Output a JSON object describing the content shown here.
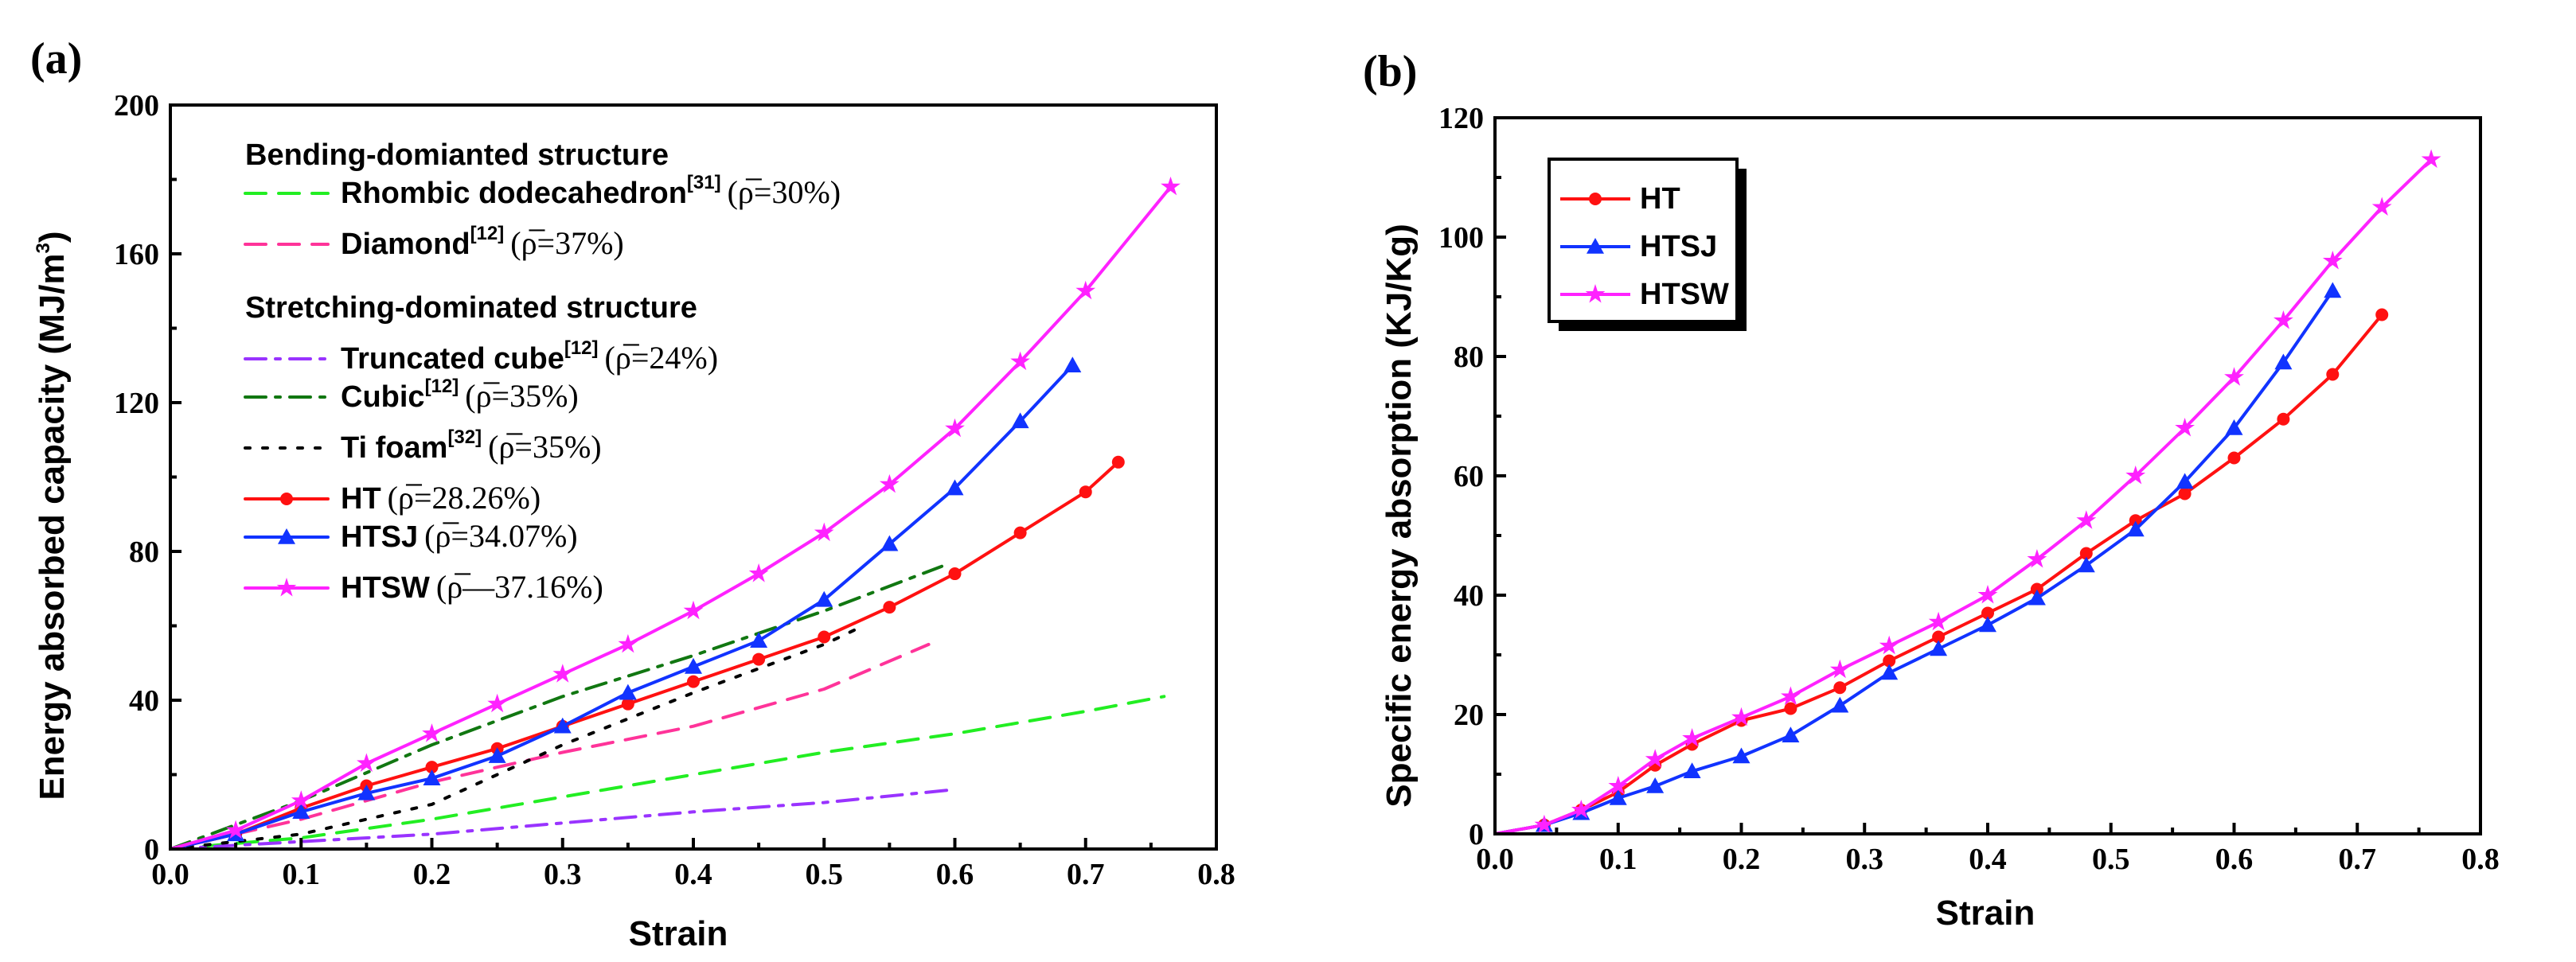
{
  "chart_data": [
    {
      "type": "line",
      "panel_label": "(a)",
      "xlabel": "Strain",
      "ylabel": "Energy absorbed capacity (MJ/m",
      "ylabel_sup": "3",
      "ylabel_close": ")",
      "xlim": [
        0.0,
        0.8
      ],
      "ylim": [
        0,
        200
      ],
      "xticks": [
        0.0,
        0.1,
        0.2,
        0.3,
        0.4,
        0.5,
        0.6,
        0.7,
        0.8
      ],
      "xtick_labels": [
        "0.0",
        "0.1",
        "0.2",
        "0.3",
        "0.4",
        "0.5",
        "0.6",
        "0.7",
        "0.8"
      ],
      "yticks": [
        0,
        40,
        80,
        120,
        160,
        200
      ],
      "ytick_labels": [
        "0",
        "40",
        "80",
        "120",
        "160",
        "200"
      ],
      "legend_headers": [
        {
          "key": "bending",
          "text": "Bending-domianted structure"
        },
        {
          "key": "stretching",
          "text": "Stretching-dominated structure"
        }
      ],
      "series": [
        {
          "name": "Rhombic dodecahedron",
          "ref": "[31]",
          "rho_text": "=30%",
          "color": "#22ee22",
          "dash": "dash",
          "marker": "none",
          "x": [
            0.0,
            0.1,
            0.2,
            0.3,
            0.4,
            0.5,
            0.6,
            0.7,
            0.76
          ],
          "y": [
            0,
            3,
            8,
            14,
            20,
            26,
            31,
            37,
            41
          ]
        },
        {
          "name": "Diamond",
          "ref": "[12]",
          "rho_text": "=37%",
          "color": "#ff3399",
          "dash": "dash",
          "marker": "none",
          "x": [
            0.0,
            0.1,
            0.2,
            0.3,
            0.4,
            0.5,
            0.58
          ],
          "y": [
            0,
            8,
            18,
            26,
            33,
            43,
            55
          ]
        },
        {
          "name": "Truncated cube",
          "ref": "[12]",
          "rho_text": "=24%",
          "color": "#9933ff",
          "dash": "dashdot",
          "marker": "none",
          "x": [
            0.0,
            0.1,
            0.2,
            0.3,
            0.4,
            0.5,
            0.6
          ],
          "y": [
            0,
            2,
            4,
            7,
            10,
            12.5,
            16
          ]
        },
        {
          "name": "Cubic",
          "ref": "[12]",
          "rho_text": "=35%",
          "color": "#117711",
          "dash": "dashdot",
          "marker": "none",
          "x": [
            0.0,
            0.1,
            0.2,
            0.3,
            0.4,
            0.5,
            0.59
          ],
          "y": [
            0,
            13,
            28,
            41,
            52,
            64,
            76
          ]
        },
        {
          "name": "Ti foam",
          "ref": "[32]",
          "rho_text": "=35%",
          "color": "#000000",
          "dash": "dot",
          "marker": "none",
          "x": [
            0.0,
            0.1,
            0.2,
            0.3,
            0.4,
            0.5,
            0.53
          ],
          "y": [
            0,
            4,
            12,
            28,
            42,
            55,
            60
          ]
        },
        {
          "name": "HT",
          "ref": "",
          "rho_text": "=28.26%",
          "color": "#ff1111",
          "dash": "solid",
          "marker": "circle",
          "x": [
            0.0,
            0.05,
            0.1,
            0.15,
            0.2,
            0.25,
            0.3,
            0.35,
            0.4,
            0.45,
            0.5,
            0.55,
            0.6,
            0.65,
            0.7,
            0.725
          ],
          "y": [
            0,
            4,
            11,
            17,
            22,
            27,
            33,
            39,
            45,
            51,
            57,
            65,
            74,
            85,
            96,
            104
          ]
        },
        {
          "name": "HTSJ",
          "ref": "",
          "rho_text": "=34.07%",
          "color": "#1133ff",
          "dash": "solid",
          "marker": "triangle",
          "x": [
            0.0,
            0.05,
            0.1,
            0.15,
            0.2,
            0.25,
            0.3,
            0.35,
            0.4,
            0.45,
            0.5,
            0.55,
            0.6,
            0.65,
            0.69
          ],
          "y": [
            0,
            4,
            10,
            15,
            19,
            25,
            33,
            42,
            49,
            56,
            67,
            82,
            97,
            115,
            130
          ]
        },
        {
          "name": "HTSW",
          "ref": "",
          "rho_text": "—37.16%",
          "color": "#ff22ff",
          "dash": "solid",
          "marker": "star",
          "x": [
            0.0,
            0.05,
            0.1,
            0.15,
            0.2,
            0.25,
            0.3,
            0.35,
            0.4,
            0.45,
            0.5,
            0.55,
            0.6,
            0.65,
            0.7,
            0.765
          ],
          "y": [
            0,
            5,
            13,
            23,
            31,
            39,
            47,
            55,
            64,
            74,
            85,
            98,
            113,
            131,
            150,
            178
          ]
        }
      ]
    },
    {
      "type": "line",
      "panel_label": "(b)",
      "xlabel": "Strain",
      "ylabel": "Specific energy absorption (KJ/Kg)",
      "xlim": [
        0.0,
        0.8
      ],
      "ylim": [
        0,
        120
      ],
      "xticks": [
        0.0,
        0.1,
        0.2,
        0.3,
        0.4,
        0.5,
        0.6,
        0.7,
        0.8
      ],
      "xtick_labels": [
        "0.0",
        "0.1",
        "0.2",
        "0.3",
        "0.4",
        "0.5",
        "0.6",
        "0.7",
        "0.8"
      ],
      "yticks": [
        0,
        20,
        40,
        60,
        80,
        100,
        120
      ],
      "ytick_labels": [
        "0",
        "20",
        "40",
        "60",
        "80",
        "100",
        "120"
      ],
      "legend_position": "top-left",
      "series": [
        {
          "name": "HT",
          "color": "#ff1111",
          "marker": "circle",
          "x": [
            0.0,
            0.04,
            0.07,
            0.1,
            0.13,
            0.16,
            0.2,
            0.24,
            0.28,
            0.32,
            0.36,
            0.4,
            0.44,
            0.48,
            0.52,
            0.56,
            0.6,
            0.64,
            0.68,
            0.72
          ],
          "y": [
            0,
            1.5,
            4,
            7,
            11.5,
            15,
            19,
            21,
            24.5,
            29,
            33,
            37,
            41,
            47,
            52.5,
            57,
            63,
            69.5,
            77,
            87
          ]
        },
        {
          "name": "HTSJ",
          "color": "#1133ff",
          "marker": "triangle",
          "x": [
            0.0,
            0.04,
            0.07,
            0.1,
            0.13,
            0.16,
            0.2,
            0.24,
            0.28,
            0.32,
            0.36,
            0.4,
            0.44,
            0.48,
            0.52,
            0.56,
            0.6,
            0.64,
            0.68
          ],
          "y": [
            0,
            1.5,
            3.5,
            6,
            8,
            10.5,
            13,
            16.5,
            21.5,
            27,
            31,
            35,
            39.5,
            45,
            51,
            59,
            68,
            79,
            91
          ]
        },
        {
          "name": "HTSW",
          "color": "#ff22ff",
          "marker": "star",
          "x": [
            0.0,
            0.04,
            0.07,
            0.1,
            0.13,
            0.16,
            0.2,
            0.24,
            0.28,
            0.32,
            0.36,
            0.4,
            0.44,
            0.48,
            0.52,
            0.56,
            0.6,
            0.64,
            0.68,
            0.72,
            0.76
          ],
          "y": [
            0,
            1.5,
            4,
            8,
            12.5,
            16,
            19.5,
            23,
            27.5,
            31.5,
            35.5,
            40,
            46,
            52.5,
            60,
            68,
            76.5,
            86,
            96,
            105,
            113
          ]
        }
      ]
    }
  ]
}
